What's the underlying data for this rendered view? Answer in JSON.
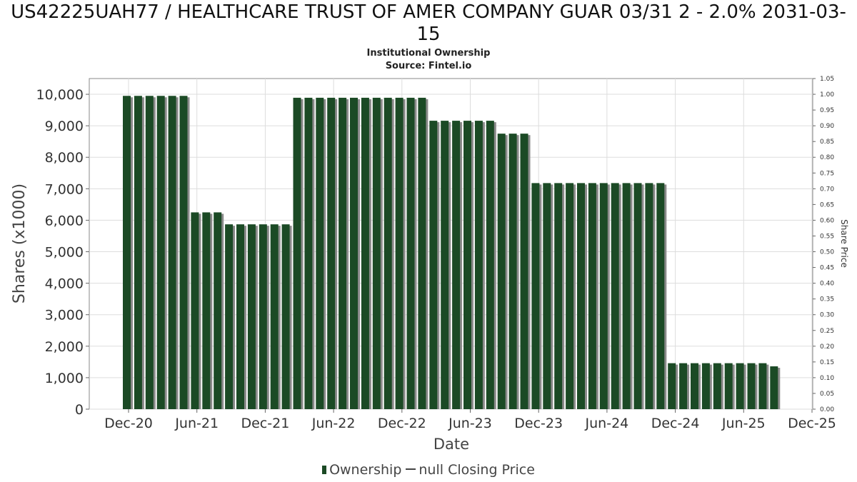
{
  "chart_data": {
    "type": "bar",
    "title": "US42225UAH77 / HEALTHCARE TRUST OF AMER COMPANY GUAR 03/31 2 - 2.0% 2031-03-15",
    "subtitle": "Institutional Ownership",
    "source": "Source: Fintel.io",
    "xlabel": "Date",
    "ylabel": "Shares (x1000)",
    "y2label": "Share Price",
    "ylim": [
      0,
      10500
    ],
    "y2lim": [
      0,
      1.05
    ],
    "yticks": [
      "0",
      "1,000",
      "2,000",
      "3,000",
      "4,000",
      "5,000",
      "6,000",
      "7,000",
      "8,000",
      "9,000",
      "10,000"
    ],
    "y2ticks": [
      "0.00",
      "0.05",
      "0.10",
      "0.15",
      "0.20",
      "0.25",
      "0.30",
      "0.35",
      "0.40",
      "0.45",
      "0.50",
      "0.55",
      "0.60",
      "0.65",
      "0.70",
      "0.75",
      "0.80",
      "0.85",
      "0.90",
      "0.95",
      "1.00",
      "1.05"
    ],
    "xticks": [
      "Dec-20",
      "Jun-21",
      "Dec-21",
      "Jun-22",
      "Dec-22",
      "Jun-23",
      "Dec-23",
      "Jun-24",
      "Dec-24",
      "Jun-25",
      "Dec-25"
    ],
    "grid": true,
    "legend_position": "bottom",
    "colors": {
      "bar": "#1b4a25",
      "bar_shadow": "#8a8a8a",
      "grid": "#dddddd"
    },
    "series": [
      {
        "name": "Ownership",
        "values": [
          9950,
          9950,
          9950,
          9950,
          9950,
          9950,
          6250,
          6250,
          6250,
          5870,
          5870,
          5870,
          5870,
          5870,
          5870,
          9890,
          9890,
          9890,
          9890,
          9890,
          9890,
          9890,
          9890,
          9890,
          9890,
          9890,
          9890,
          9160,
          9160,
          9160,
          9160,
          9160,
          9160,
          8750,
          8750,
          8750,
          7180,
          7180,
          7180,
          7180,
          7180,
          7180,
          7180,
          7180,
          7180,
          7180,
          7180,
          7180,
          1460,
          1460,
          1460,
          1460,
          1460,
          1460,
          1460,
          1460,
          1460,
          1360
        ]
      }
    ],
    "legend": [
      "Ownership",
      "null Closing Price"
    ]
  }
}
